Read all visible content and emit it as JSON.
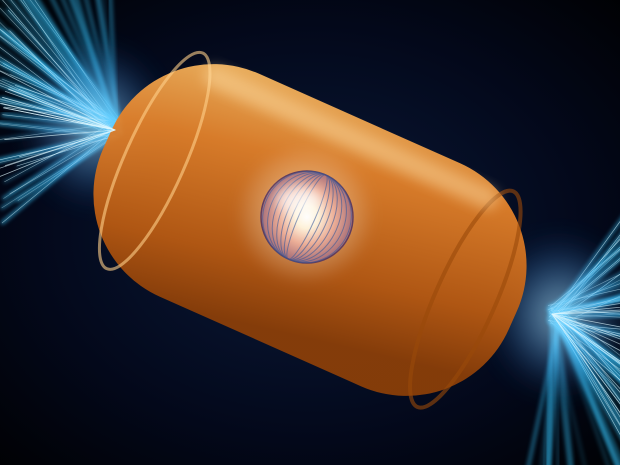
{
  "scene": {
    "subject": "hohlraum-capsule-illustration",
    "colors": {
      "background": "#020510",
      "hohlraum_gold": "#e07a1e",
      "hohlraum_light": "#f6b25a",
      "beam_cyan": "#38c8ff",
      "beam_core": "#dff8ff",
      "interior_magenta": "#c86bd6",
      "capsule_glow": "#fff4dc"
    },
    "icons": [
      "laser-beam",
      "fuel-capsule",
      "hohlraum-cylinder"
    ]
  }
}
